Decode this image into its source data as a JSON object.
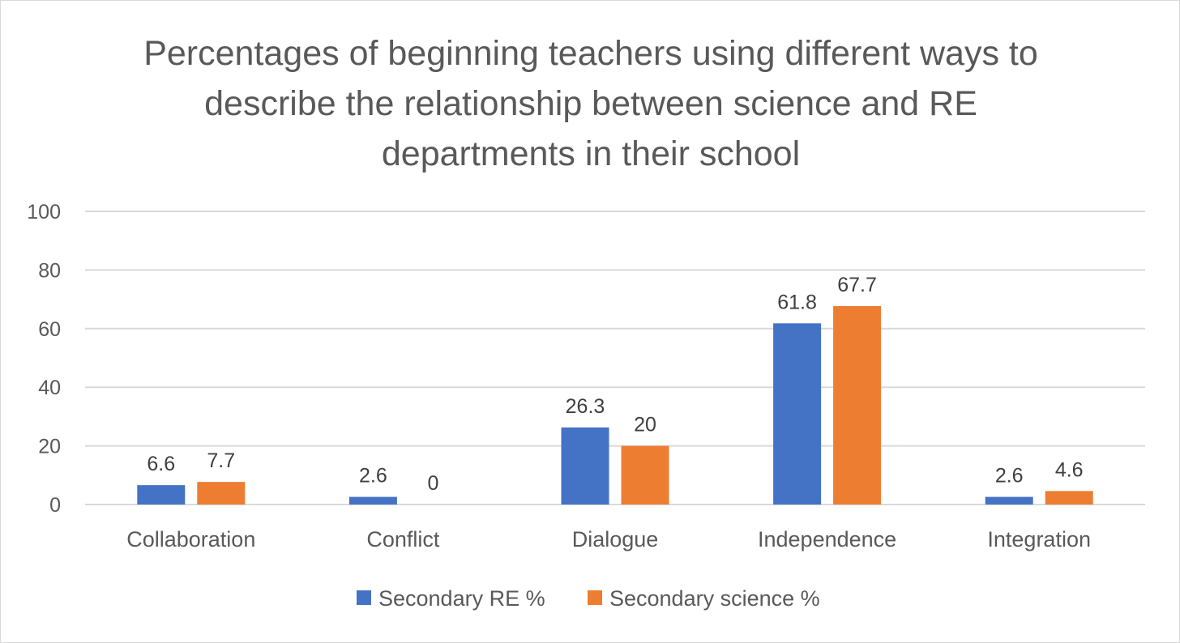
{
  "chart_data": {
    "type": "bar",
    "title": "Percentages of beginning teachers using different ways to describe the relationship between science and RE departments in their school",
    "categories": [
      "Collaboration",
      "Conflict",
      "Dialogue",
      "Independence",
      "Integration"
    ],
    "series": [
      {
        "name": "Secondary RE %",
        "values": [
          6.6,
          2.6,
          26.3,
          61.8,
          2.6
        ],
        "color": "#4472c4"
      },
      {
        "name": "Secondary science %",
        "values": [
          7.7,
          0,
          20,
          67.7,
          4.6
        ],
        "color": "#ed7d31"
      }
    ],
    "ylim": [
      0,
      100
    ],
    "yticks": [
      0,
      20,
      40,
      60,
      80,
      100
    ],
    "grid": true,
    "legend": "bottom",
    "data_labels": true
  }
}
